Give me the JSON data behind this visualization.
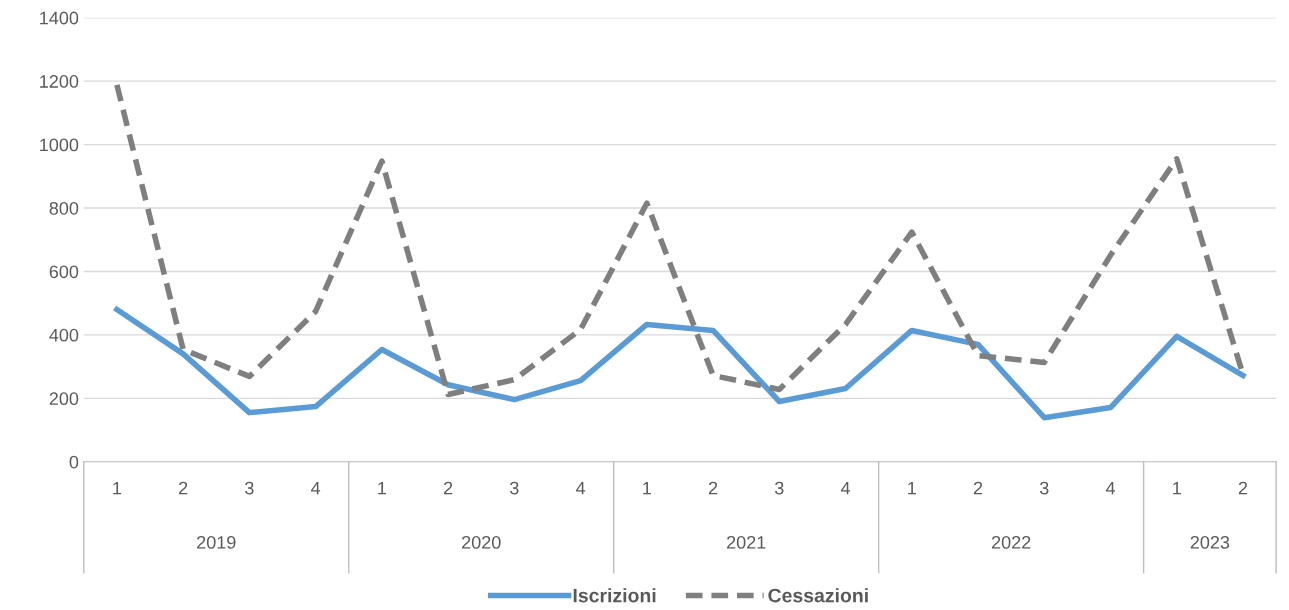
{
  "chart_data": {
    "type": "line",
    "categories": [
      "1",
      "2",
      "3",
      "4",
      "1",
      "2",
      "3",
      "4",
      "1",
      "2",
      "3",
      "4",
      "1",
      "2",
      "3",
      "4",
      "1",
      "2"
    ],
    "annotations": [
      "2019",
      "2020",
      "2021",
      "2022",
      "2023"
    ],
    "series": [
      {
        "name": "Iscrizioni",
        "color": "#5b9bd5",
        "line_style": "solid",
        "values": [
          480,
          340,
          155,
          174,
          354,
          243,
          196,
          256,
          433,
          414,
          190,
          231,
          414,
          370,
          139,
          171,
          395,
          272
        ]
      },
      {
        "name": "Cessazioni",
        "color": "#7f7f7f",
        "line_style": "dashed",
        "values": [
          1188,
          354,
          269,
          474,
          948,
          212,
          259,
          417,
          815,
          272,
          228,
          433,
          724,
          335,
          313,
          651,
          955,
          275
        ]
      }
    ],
    "ylim": [
      0,
      1400
    ],
    "yticks": [
      0,
      200,
      400,
      600,
      800,
      1000,
      1200,
      1400
    ],
    "grid": "y",
    "legend": "bottom",
    "marker": "none"
  }
}
